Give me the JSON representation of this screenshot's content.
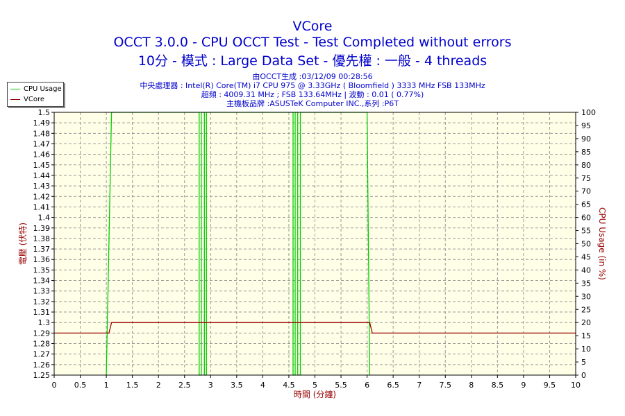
{
  "chart_data": {
    "type": "line",
    "title": "VCore",
    "subtitles": [
      "OCCT 3.0.0 - CPU OCCT Test - Test Completed without errors",
      "10分 - 模式 : Large Data Set - 優先權 : 一般 - 4 threads"
    ],
    "info_lines": [
      "由OCCT生成 :03/12/09 00:28:56",
      "中央處理器 : Intel(R) Core(TM) i7 CPU 975 @ 3.33GHz ( Bloomfield ) 3333 MHz FSB 133MHz",
      "超頻 : 4009.31 MHz ; FSB 133.64MHz | 波動 : 0.01 ( 0.77%)",
      "主機板品牌 :ASUSTeK Computer INC.,系列 :P6T"
    ],
    "xlabel": "時間 (分鐘)",
    "ylabel_left": "電壓 (伏特)",
    "ylabel_right": "CPU Usage (in %)",
    "xlim": [
      0,
      10
    ],
    "ylim_left": [
      1.25,
      1.5
    ],
    "ylim_right": [
      0,
      100
    ],
    "x_ticks": [
      "0",
      "0.5",
      "1",
      "1.5",
      "2",
      "2.5",
      "3",
      "3.5",
      "4",
      "4.5",
      "5",
      "5.5",
      "6",
      "6.5",
      "7",
      "7.5",
      "8",
      "8.5",
      "9",
      "9.5",
      "10"
    ],
    "y_ticks_left": [
      "1.25",
      "1.26",
      "1.27",
      "1.28",
      "1.29",
      "1.3",
      "1.31",
      "1.32",
      "1.33",
      "1.34",
      "1.35",
      "1.36",
      "1.37",
      "1.38",
      "1.39",
      "1.4",
      "1.41",
      "1.42",
      "1.43",
      "1.44",
      "1.45",
      "1.46",
      "1.47",
      "1.48",
      "1.49",
      "1.5"
    ],
    "y_ticks_right": [
      "0",
      "5",
      "10",
      "15",
      "20",
      "25",
      "30",
      "35",
      "40",
      "45",
      "50",
      "55",
      "60",
      "65",
      "70",
      "75",
      "80",
      "85",
      "90",
      "95",
      "100"
    ],
    "grid": true,
    "legend_position": "top-left",
    "series": [
      {
        "name": "CPU Usage",
        "axis": "right",
        "color": "#00cc00",
        "points": [
          [
            1.0,
            0
          ],
          [
            1.1,
            100
          ],
          [
            2.78,
            100
          ],
          [
            2.78,
            0
          ],
          [
            2.82,
            0
          ],
          [
            2.82,
            100
          ],
          [
            2.88,
            100
          ],
          [
            2.88,
            0
          ],
          [
            2.92,
            0
          ],
          [
            2.92,
            100
          ],
          [
            4.58,
            100
          ],
          [
            4.58,
            0
          ],
          [
            4.62,
            0
          ],
          [
            4.62,
            100
          ],
          [
            4.67,
            100
          ],
          [
            4.67,
            0
          ],
          [
            4.72,
            0
          ],
          [
            4.72,
            100
          ],
          [
            6.0,
            100
          ],
          [
            6.05,
            0
          ]
        ]
      },
      {
        "name": "VCore",
        "axis": "left",
        "color": "#990000",
        "points": [
          [
            0,
            1.29
          ],
          [
            1.05,
            1.29
          ],
          [
            1.1,
            1.3
          ],
          [
            6.05,
            1.3
          ],
          [
            6.1,
            1.29
          ],
          [
            10,
            1.29
          ]
        ]
      }
    ]
  }
}
